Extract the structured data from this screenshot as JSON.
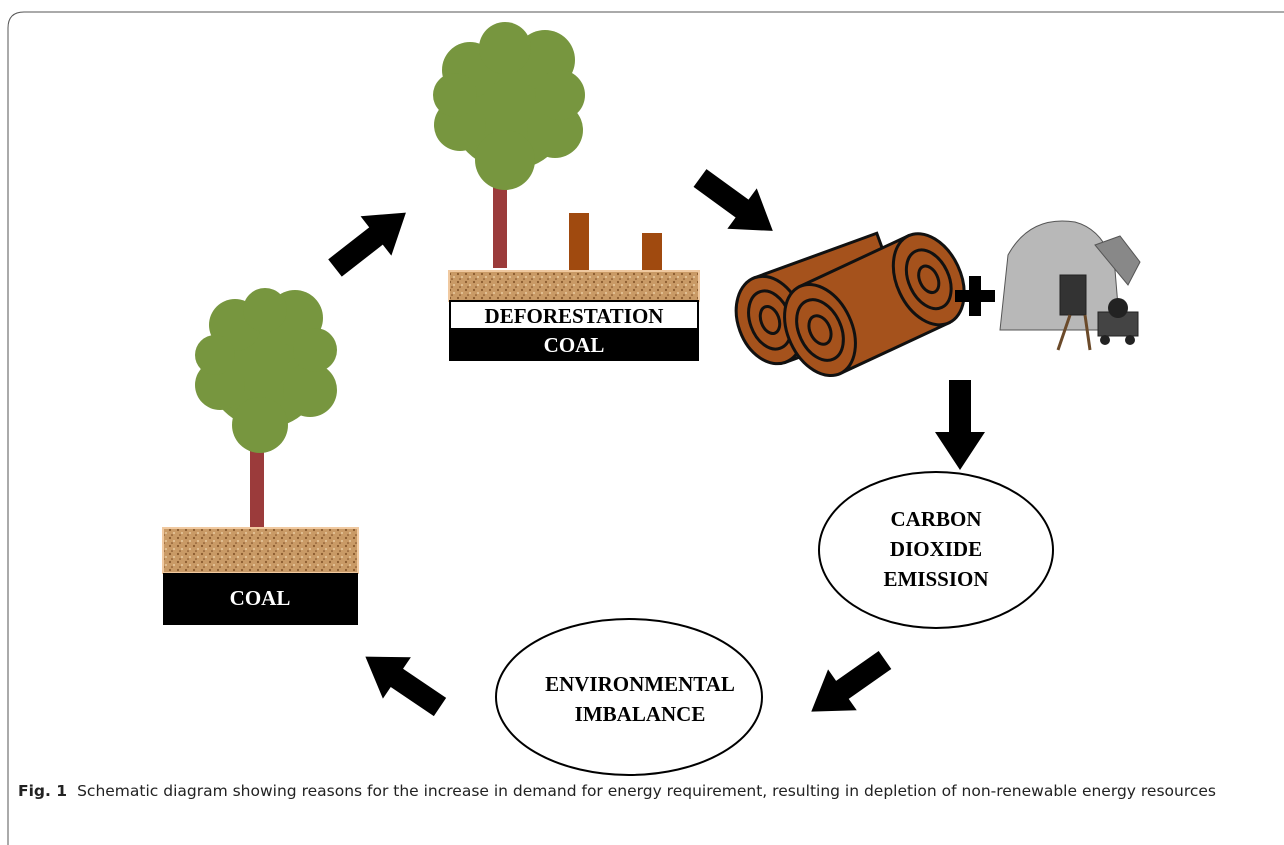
{
  "top_panel": {
    "label": "DEFORESTATION",
    "base": "COAL"
  },
  "left_panel": {
    "base": "COAL"
  },
  "carbon_node": {
    "lines": [
      "CARBON",
      "DIOXIDE",
      "EMISSION"
    ]
  },
  "imbalance_node": {
    "lines": [
      "ENVIRONMENTAL",
      "IMBALANCE"
    ]
  },
  "caption": {
    "label": "Fig. 1",
    "text": "Schematic diagram showing reasons for the increase in demand for energy requirement, resulting in depletion of non-renewable energy resources"
  }
}
